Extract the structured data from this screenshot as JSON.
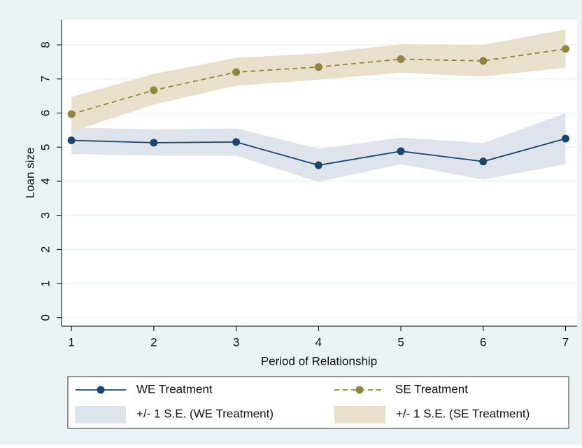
{
  "chart_data": {
    "type": "line",
    "x_label": "Period of Relationship",
    "y_label": "Loan size",
    "x": [
      1,
      2,
      3,
      4,
      5,
      6,
      7
    ],
    "series": [
      {
        "name": "WE Treatment",
        "color": "#1a476f",
        "dash": false,
        "values": [
          5.2,
          5.13,
          5.15,
          4.47,
          4.88,
          4.58,
          5.25
        ]
      },
      {
        "name": "SE Treatment",
        "color": "#90853c",
        "dash": true,
        "values": [
          5.97,
          6.67,
          7.2,
          7.35,
          7.58,
          7.53,
          7.88
        ]
      }
    ],
    "bands": [
      {
        "name": "+/- 1 S.E. (WE Treatment)",
        "color": "#dfe4ec",
        "lower": [
          4.8,
          4.75,
          4.75,
          3.98,
          4.5,
          4.05,
          4.5
        ],
        "upper": [
          5.58,
          5.52,
          5.55,
          4.95,
          5.28,
          5.12,
          6.0
        ]
      },
      {
        "name": "+/- 1 S.E. (SE Treatment)",
        "color": "#e9e0cb",
        "lower": [
          5.45,
          6.25,
          6.8,
          6.98,
          7.18,
          7.07,
          7.33
        ],
        "upper": [
          6.47,
          7.15,
          7.62,
          7.75,
          8.02,
          8.0,
          8.45
        ]
      }
    ],
    "xlim": [
      0.88,
      7.14
    ],
    "ylim": [
      -0.25,
      8.74
    ],
    "xticks": [
      1,
      2,
      3,
      4,
      5,
      6,
      7
    ],
    "yticks": [
      0,
      1,
      2,
      3,
      4,
      5,
      6,
      7,
      8
    ],
    "grid": true
  }
}
